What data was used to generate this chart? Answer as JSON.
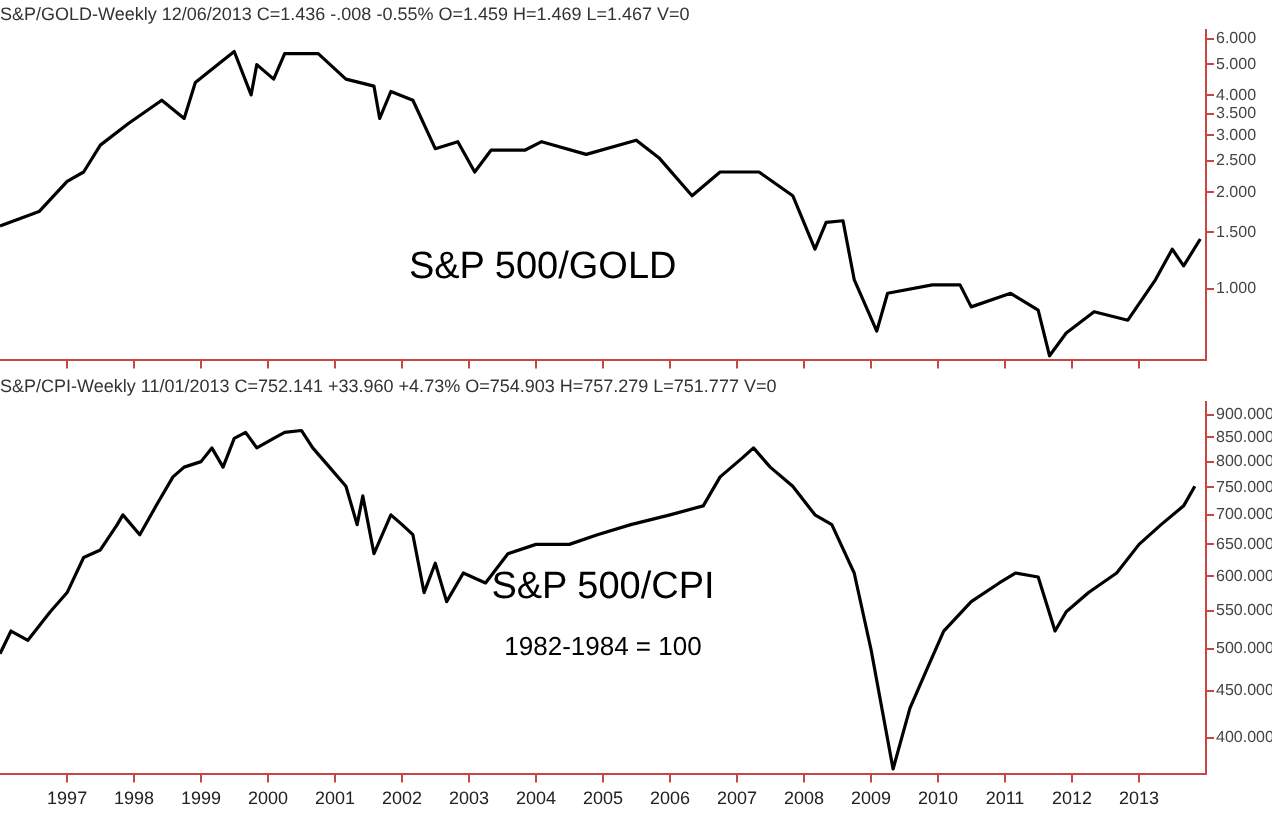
{
  "chart_data": [
    {
      "type": "line",
      "title": "S&P/GOLD-Weekly 12/06/2013 C=1.436 -.008 -0.55% O=1.459 H=1.469 L=1.467 V=0",
      "annotations": [
        "S&P 500/GOLD"
      ],
      "log": "y",
      "legend": false,
      "tick_labels": "y",
      "xlim": [
        "1996-01-01",
        "2014-01-01"
      ],
      "xticks": [
        {
          "value": "1997-01-01",
          "label": null
        },
        {
          "value": "1998-01-01",
          "label": null
        },
        {
          "value": "1999-01-01",
          "label": null
        },
        {
          "value": "2000-01-01",
          "label": null
        },
        {
          "value": "2001-01-01",
          "label": null
        },
        {
          "value": "2002-01-01",
          "label": null
        },
        {
          "value": "2003-01-01",
          "label": null
        },
        {
          "value": "2004-01-01",
          "label": null
        },
        {
          "value": "2005-01-01",
          "label": null
        },
        {
          "value": "2006-01-01",
          "label": null
        },
        {
          "value": "2007-01-01",
          "label": null
        },
        {
          "value": "2008-01-01",
          "label": null
        },
        {
          "value": "2009-01-01",
          "label": null
        },
        {
          "value": "2010-01-01",
          "label": null
        },
        {
          "value": "2011-01-01",
          "label": null
        },
        {
          "value": "2012-01-01",
          "label": null
        },
        {
          "value": "2013-01-01",
          "label": null
        }
      ],
      "ylim": [
        0.6,
        6.4
      ],
      "yticks": [
        {
          "value": 1,
          "label": "1.000"
        },
        {
          "value": 1.5,
          "label": "1.500"
        },
        {
          "value": 2,
          "label": "2.000"
        },
        {
          "value": 2.5,
          "label": "2.500"
        },
        {
          "value": 3,
          "label": "3.000"
        },
        {
          "value": 3.5,
          "label": "3.500"
        },
        {
          "value": 4,
          "label": "4.000"
        },
        {
          "value": 5,
          "label": "5.000"
        },
        {
          "value": 6,
          "label": "6.000"
        }
      ],
      "x": [
        "1996-01",
        "1996-08",
        "1997-01",
        "1997-04",
        "1997-07",
        "1997-12",
        "1998-06",
        "1998-10",
        "1998-12",
        "1999-04",
        "1999-07",
        "1999-10",
        "1999-11",
        "2000-02",
        "2000-04",
        "2000-10",
        "2001-03",
        "2001-08",
        "2001-09",
        "2001-11",
        "2002-03",
        "2002-07",
        "2002-11",
        "2003-02",
        "2003-05",
        "2003-11",
        "2004-02",
        "2004-10",
        "2005-07",
        "2005-11",
        "2006-05",
        "2006-10",
        "2007-05",
        "2007-11",
        "2008-03",
        "2008-05",
        "2008-08",
        "2008-10",
        "2009-02",
        "2009-04",
        "2009-12",
        "2010-05",
        "2010-07",
        "2011-02",
        "2011-07",
        "2011-09",
        "2011-12",
        "2012-05",
        "2012-11",
        "2013-04",
        "2013-07",
        "2013-09",
        "2013-12"
      ],
      "series": [
        {
          "color": "#000000",
          "values": [
            1.57,
            1.74,
            2.16,
            2.31,
            2.8,
            3.27,
            3.86,
            3.39,
            4.38,
            4.98,
            5.47,
            4.01,
            4.98,
            4.49,
            5.39,
            5.39,
            4.49,
            4.27,
            3.39,
            4.11,
            3.86,
            2.73,
            2.87,
            2.31,
            2.7,
            2.7,
            2.87,
            2.62,
            2.9,
            2.56,
            1.95,
            2.31,
            2.31,
            1.95,
            1.33,
            1.61,
            1.63,
            1.07,
            0.74,
            0.97,
            1.03,
            1.03,
            0.88,
            0.97,
            0.86,
            0.62,
            0.73,
            0.85,
            0.8,
            1.07,
            1.33,
            1.18,
            1.43
          ]
        }
      ]
    },
    {
      "type": "line",
      "title": "S&P/CPI-Weekly 11/01/2013 C=752.141 +33.960 +4.73% O=754.903 H=757.279 L=751.777 V=0",
      "annotations": [
        "S&P 500/CPI",
        "1982-1984 = 100"
      ],
      "log": "y",
      "legend": false,
      "xlim": [
        "1996-01-01",
        "2014-01-01"
      ],
      "xticks": [
        {
          "value": "1997-01-01",
          "label": "1997"
        },
        {
          "value": "1998-01-01",
          "label": "1998"
        },
        {
          "value": "1999-01-01",
          "label": "1999"
        },
        {
          "value": "2000-01-01",
          "label": "2000"
        },
        {
          "value": "2001-01-01",
          "label": "2001"
        },
        {
          "value": "2002-01-01",
          "label": "2002"
        },
        {
          "value": "2003-01-01",
          "label": "2003"
        },
        {
          "value": "2004-01-01",
          "label": "2004"
        },
        {
          "value": "2005-01-01",
          "label": "2005"
        },
        {
          "value": "2006-01-01",
          "label": "2006"
        },
        {
          "value": "2007-01-01",
          "label": "2007"
        },
        {
          "value": "2008-01-01",
          "label": "2008"
        },
        {
          "value": "2009-01-01",
          "label": "2009"
        },
        {
          "value": "2010-01-01",
          "label": "2010"
        },
        {
          "value": "2011-01-01",
          "label": "2011"
        },
        {
          "value": "2012-01-01",
          "label": "2012"
        },
        {
          "value": "2013-01-01",
          "label": "2013"
        }
      ],
      "ylim": [
        365,
        930
      ],
      "yticks": [
        {
          "value": 400,
          "label": "400.000"
        },
        {
          "value": 450,
          "label": "450.000"
        },
        {
          "value": 500,
          "label": "500.000"
        },
        {
          "value": 550,
          "label": "550.000"
        },
        {
          "value": 600,
          "label": "600.000"
        },
        {
          "value": 650,
          "label": "650.000"
        },
        {
          "value": 700,
          "label": "700.000"
        },
        {
          "value": 750,
          "label": "750.000"
        },
        {
          "value": 800,
          "label": "800.000"
        },
        {
          "value": 850,
          "label": "850.000"
        },
        {
          "value": 900,
          "label": "900.000"
        }
      ],
      "x": [
        "1996-01",
        "1996-03",
        "1996-06",
        "1996-10",
        "1997-01",
        "1997-04",
        "1997-07",
        "1997-10",
        "1997-11",
        "1998-02",
        "1998-05",
        "1998-08",
        "1998-10",
        "1999-01",
        "1999-03",
        "1999-05",
        "1999-07",
        "1999-09",
        "1999-11",
        "2000-02",
        "2000-04",
        "2000-07",
        "2000-09",
        "2000-12",
        "2001-03",
        "2001-05",
        "2001-06",
        "2001-08",
        "2001-11",
        "2002-01",
        "2002-03",
        "2002-05",
        "2002-07",
        "2002-09",
        "2002-12",
        "2003-04",
        "2003-08",
        "2004-01",
        "2004-07",
        "2004-12",
        "2005-06",
        "2006-01",
        "2006-07",
        "2006-10",
        "2007-02",
        "2007-04",
        "2007-07",
        "2007-11",
        "2008-03",
        "2008-06",
        "2008-10",
        "2009-01",
        "2009-05",
        "2009-08",
        "2009-11",
        "2010-02",
        "2010-07",
        "2010-12",
        "2011-03",
        "2011-07",
        "2011-10",
        "2011-12",
        "2012-04",
        "2012-09",
        "2013-01",
        "2013-05",
        "2013-09",
        "2013-11"
      ],
      "series": [
        {
          "color": "#000000",
          "values": [
            494,
            523,
            511,
            549,
            576,
            629,
            641,
            683,
            700,
            666,
            716,
            770,
            789,
            800,
            828,
            789,
            848,
            861,
            828,
            848,
            861,
            865,
            828,
            789,
            752,
            683,
            734,
            635,
            700,
            683,
            666,
            576,
            620,
            563,
            605,
            590,
            635,
            650,
            650,
            666,
            683,
            700,
            716,
            770,
            808,
            828,
            789,
            752,
            700,
            683,
            605,
            499,
            370,
            431,
            475,
            523,
            563,
            590,
            605,
            599,
            523,
            549,
            576,
            605,
            650,
            683,
            716,
            752
          ]
        }
      ]
    }
  ]
}
